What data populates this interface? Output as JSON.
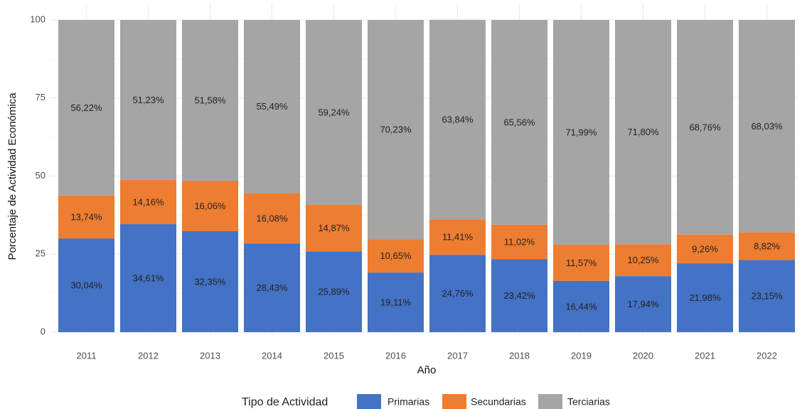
{
  "chart_data": {
    "type": "stacked_bar",
    "categories": [
      "2011",
      "2012",
      "2013",
      "2014",
      "2015",
      "2016",
      "2017",
      "2018",
      "2019",
      "2020",
      "2021",
      "2022"
    ],
    "series": [
      {
        "name": "Primarias",
        "color": "#4472c4",
        "values": [
          30.04,
          34.61,
          32.35,
          28.43,
          25.89,
          19.11,
          24.76,
          23.42,
          16.44,
          17.94,
          21.98,
          23.15
        ],
        "value_labels": [
          "30,04%",
          "34,61%",
          "32,35%",
          "28,43%",
          "25,89%",
          "19,11%",
          "24,76%",
          "23,42%",
          "16,44%",
          "17,94%",
          "21,98%",
          "23,15%"
        ]
      },
      {
        "name": "Secundarias",
        "color": "#ed7d31",
        "values": [
          13.74,
          14.16,
          16.06,
          16.08,
          14.87,
          10.65,
          11.41,
          11.02,
          11.57,
          10.25,
          9.26,
          8.82
        ],
        "value_labels": [
          "13,74%",
          "14,16%",
          "16,06%",
          "16,08%",
          "14,87%",
          "10,65%",
          "11,41%",
          "11,02%",
          "11,57%",
          "10,25%",
          "9,26%",
          "8,82%"
        ]
      },
      {
        "name": "Terciarias",
        "color": "#a5a5a5",
        "values": [
          56.22,
          51.23,
          51.58,
          55.49,
          59.24,
          70.23,
          63.84,
          65.56,
          71.99,
          71.8,
          68.76,
          68.03
        ],
        "value_labels": [
          "56,22%",
          "51,23%",
          "51,58%",
          "55,49%",
          "59,24%",
          "70,23%",
          "63,84%",
          "65,56%",
          "71,99%",
          "71,80%",
          "68,76%",
          "68,03%"
        ]
      }
    ],
    "x_label": "Año",
    "y_label": "Porcentaje de Actividad Económica",
    "legend_title": "Tipo de Actividad",
    "legend_position": "bottom",
    "ylim": [
      0,
      100
    ],
    "yticks": [
      0,
      25,
      50,
      75,
      100
    ],
    "grid": true
  }
}
